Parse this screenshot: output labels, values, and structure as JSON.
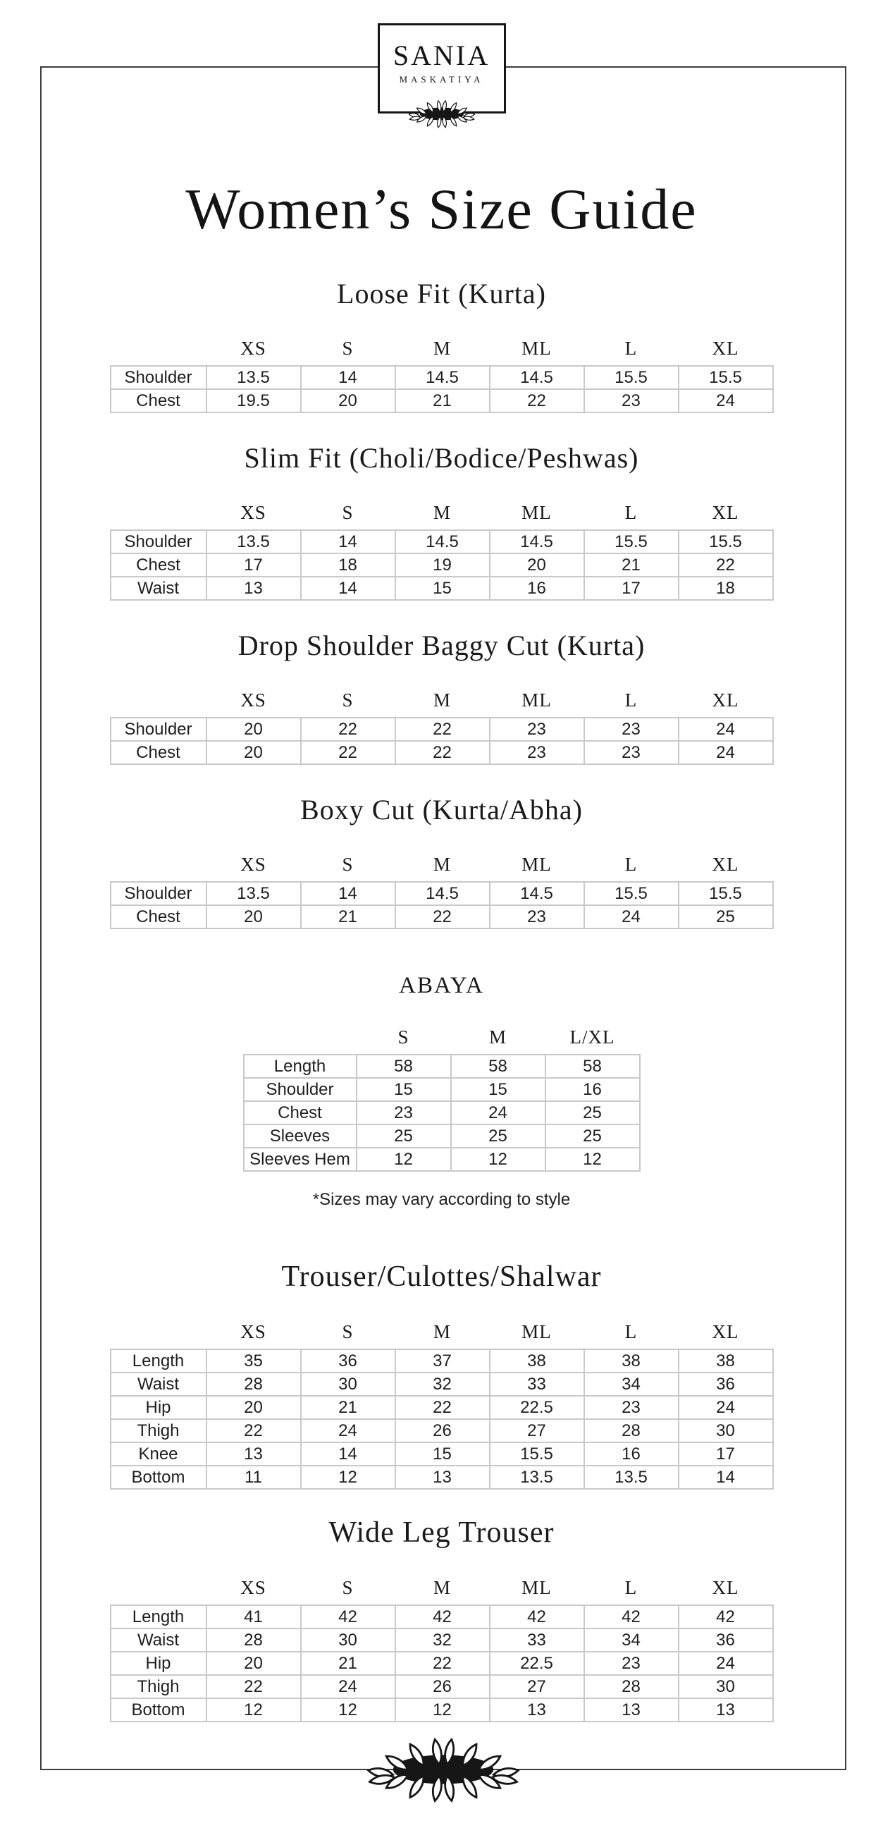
{
  "brand": {
    "wordmark": "SANIA",
    "submark": "MASKATIYA"
  },
  "title": "Women’s Size Guide",
  "note": "*Sizes may vary according to style",
  "icons": {
    "ornament": "laurel-leaves"
  },
  "colors": {
    "text": "#1c1c1c",
    "table_border": "#c9c9c9",
    "frame_border": "#3d3d3d",
    "background": "#ffffff"
  },
  "sections": [
    {
      "id": "loose-fit-kurta",
      "title": "Loose Fit (Kurta)",
      "columns": [
        "XS",
        "S",
        "M",
        "ML",
        "L",
        "XL"
      ],
      "rows": [
        [
          "Shoulder",
          "13.5",
          "14",
          "14.5",
          "14.5",
          "15.5",
          "15.5"
        ],
        [
          "Chest",
          "19.5",
          "20",
          "21",
          "22",
          "23",
          "24"
        ]
      ]
    },
    {
      "id": "slim-fit",
      "title": "Slim Fit (Choli/Bodice/Peshwas)",
      "columns": [
        "XS",
        "S",
        "M",
        "ML",
        "L",
        "XL"
      ],
      "rows": [
        [
          "Shoulder",
          "13.5",
          "14",
          "14.5",
          "14.5",
          "15.5",
          "15.5"
        ],
        [
          "Chest",
          "17",
          "18",
          "19",
          "20",
          "21",
          "22"
        ],
        [
          "Waist",
          "13",
          "14",
          "15",
          "16",
          "17",
          "18"
        ]
      ]
    },
    {
      "id": "drop-shoulder-baggy-cut",
      "title": "Drop Shoulder Baggy Cut (Kurta)",
      "columns": [
        "XS",
        "S",
        "M",
        "ML",
        "L",
        "XL"
      ],
      "rows": [
        [
          "Shoulder",
          "20",
          "22",
          "22",
          "23",
          "23",
          "24"
        ],
        [
          "Chest",
          "20",
          "22",
          "22",
          "23",
          "23",
          "24"
        ]
      ]
    },
    {
      "id": "boxy-cut",
      "title": "Boxy Cut (Kurta/Abha)",
      "columns": [
        "XS",
        "S",
        "M",
        "ML",
        "L",
        "XL"
      ],
      "rows": [
        [
          "Shoulder",
          "13.5",
          "14",
          "14.5",
          "14.5",
          "15.5",
          "15.5"
        ],
        [
          "Chest",
          "20",
          "21",
          "22",
          "23",
          "24",
          "25"
        ]
      ]
    },
    {
      "id": "abaya",
      "title": "ABAYA",
      "columns": [
        "S",
        "M",
        "L/XL"
      ],
      "rows": [
        [
          "Length",
          "58",
          "58",
          "58"
        ],
        [
          "Shoulder",
          "15",
          "15",
          "16"
        ],
        [
          "Chest",
          "23",
          "24",
          "25"
        ],
        [
          "Sleeves",
          "25",
          "25",
          "25"
        ],
        [
          "Sleeves Hem",
          "12",
          "12",
          "12"
        ]
      ]
    },
    {
      "id": "trouser-culottes-shalwar",
      "title": "Trouser/Culottes/Shalwar",
      "columns": [
        "XS",
        "S",
        "M",
        "ML",
        "L",
        "XL"
      ],
      "rows": [
        [
          "Length",
          "35",
          "36",
          "37",
          "38",
          "38",
          "38"
        ],
        [
          "Waist",
          "28",
          "30",
          "32",
          "33",
          "34",
          "36"
        ],
        [
          "Hip",
          "20",
          "21",
          "22",
          "22.5",
          "23",
          "24"
        ],
        [
          "Thigh",
          "22",
          "24",
          "26",
          "27",
          "28",
          "30"
        ],
        [
          "Knee",
          "13",
          "14",
          "15",
          "15.5",
          "16",
          "17"
        ],
        [
          "Bottom",
          "11",
          "12",
          "13",
          "13.5",
          "13.5",
          "14"
        ]
      ]
    },
    {
      "id": "wide-leg-trouser",
      "title": "Wide Leg Trouser",
      "columns": [
        "XS",
        "S",
        "M",
        "ML",
        "L",
        "XL"
      ],
      "rows": [
        [
          "Length",
          "41",
          "42",
          "42",
          "42",
          "42",
          "42"
        ],
        [
          "Waist",
          "28",
          "30",
          "32",
          "33",
          "34",
          "36"
        ],
        [
          "Hip",
          "20",
          "21",
          "22",
          "22.5",
          "23",
          "24"
        ],
        [
          "Thigh",
          "22",
          "24",
          "26",
          "27",
          "28",
          "30"
        ],
        [
          "Bottom",
          "12",
          "12",
          "12",
          "13",
          "13",
          "13"
        ]
      ]
    }
  ]
}
